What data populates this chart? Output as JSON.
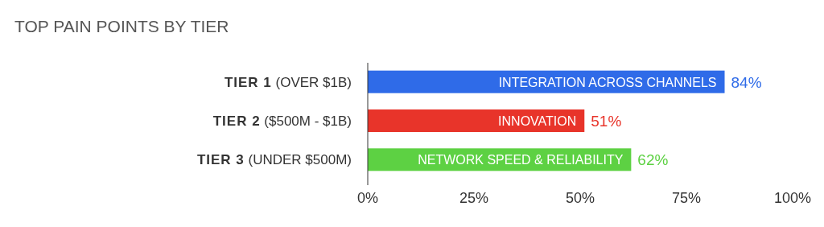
{
  "chart_data": {
    "type": "bar",
    "orientation": "horizontal",
    "title": "TOP PAIN POINTS BY TIER",
    "categories": [
      "TIER 1 (OVER $1B)",
      "TIER 2 ($500M - $1B)",
      "TIER 3 (UNDER $500M)"
    ],
    "values": [
      84,
      51,
      62
    ],
    "colors": [
      "#2f6be8",
      "#e8342a",
      "#5dd143"
    ],
    "value_labels": [
      "84%",
      "51%",
      "62%"
    ],
    "annotations": [
      {
        "text": "INTEGRATION ACROSS CHANNELS",
        "x": 84,
        "y": "TIER 1 (OVER $1B)"
      },
      {
        "text": "INNOVATION",
        "x": 51,
        "y": "TIER 2 ($500M - $1B)"
      },
      {
        "text": "NETWORK SPEED & RELIABILITY",
        "x": 62,
        "y": "TIER 3 (UNDER $500M)"
      }
    ],
    "xlim": [
      0,
      100
    ],
    "xticks": [
      {
        "value": 0,
        "label": "0%"
      },
      {
        "value": 25,
        "label": "25%"
      },
      {
        "value": 50,
        "label": "50%"
      },
      {
        "value": 75,
        "label": "75%"
      },
      {
        "value": 100,
        "label": "100%"
      }
    ],
    "grid": false
  }
}
